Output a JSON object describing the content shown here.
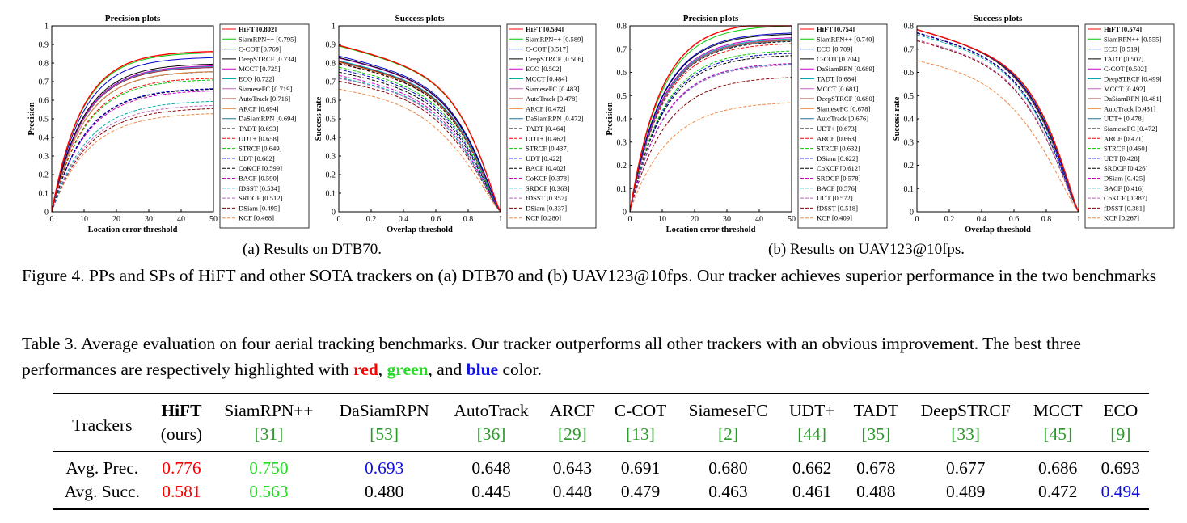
{
  "figure": {
    "caption": "Figure 4. PPs and SPs of HiFT and other SOTA trackers on (a) DTB70 and (b) UAV123@10fps. Our tracker achieves superior performance in the two benchmarks",
    "subcaption_a": "(a) Results on DTB70.",
    "subcaption_b": "(b) Results on UAV123@10fps."
  },
  "chart_data": [
    {
      "type": "line",
      "title": "Precision plots",
      "xlabel": "Location error threshold",
      "ylabel": "Precision",
      "xlim": [
        0,
        50
      ],
      "ylim": [
        0,
        1
      ],
      "xticks": [
        "0",
        "10",
        "20",
        "30",
        "40",
        "50"
      ],
      "yticks": [
        "0",
        "0.1",
        "0.2",
        "0.3",
        "0.4",
        "0.5",
        "0.6",
        "0.7",
        "0.8",
        "0.9",
        "1"
      ],
      "legend_position": "right",
      "series": [
        {
          "name": "HiFT [0.802]",
          "score": 0.802,
          "color": "#ff0000",
          "dash": false
        },
        {
          "name": "SiamRPN++ [0.795]",
          "score": 0.795,
          "color": "#00cc00",
          "dash": false
        },
        {
          "name": "C-COT [0.769]",
          "score": 0.769,
          "color": "#0000cc",
          "dash": false
        },
        {
          "name": "DeepSTRCF [0.734]",
          "score": 0.734,
          "color": "#000000",
          "dash": false
        },
        {
          "name": "MCCT [0.725]",
          "score": 0.725,
          "color": "#cc00cc",
          "dash": false
        },
        {
          "name": "ECO [0.722]",
          "score": 0.722,
          "color": "#00aaaa",
          "dash": false
        },
        {
          "name": "SiameseFC [0.719]",
          "score": 0.719,
          "color": "#bb66bb",
          "dash": false
        },
        {
          "name": "AutoTrack [0.716]",
          "score": 0.716,
          "color": "#880000",
          "dash": false
        },
        {
          "name": "ARCF [0.694]",
          "score": 0.694,
          "color": "#ee8844",
          "dash": false
        },
        {
          "name": "DaSiamRPN [0.694]",
          "score": 0.694,
          "color": "#227799",
          "dash": false
        },
        {
          "name": "TADT [0.693]",
          "score": 0.693,
          "color": "#000000",
          "dash": true
        },
        {
          "name": "UDT+ [0.658]",
          "score": 0.658,
          "color": "#ff0000",
          "dash": true
        },
        {
          "name": "STRCF [0.649]",
          "score": 0.649,
          "color": "#00cc00",
          "dash": true
        },
        {
          "name": "UDT [0.602]",
          "score": 0.602,
          "color": "#0000cc",
          "dash": true
        },
        {
          "name": "CoKCF [0.599]",
          "score": 0.599,
          "color": "#000000",
          "dash": true
        },
        {
          "name": "BACF [0.590]",
          "score": 0.59,
          "color": "#cc00cc",
          "dash": true
        },
        {
          "name": "fDSST [0.534]",
          "score": 0.534,
          "color": "#00aaaa",
          "dash": true
        },
        {
          "name": "SRDCF [0.512]",
          "score": 0.512,
          "color": "#bb66bb",
          "dash": true
        },
        {
          "name": "DSiam [0.495]",
          "score": 0.495,
          "color": "#880000",
          "dash": true
        },
        {
          "name": "KCF [0.468]",
          "score": 0.468,
          "color": "#ee8844",
          "dash": true
        }
      ]
    },
    {
      "type": "line",
      "title": "Success plots",
      "xlabel": "Overlap threshold",
      "ylabel": "Success rate",
      "xlim": [
        0,
        1
      ],
      "ylim": [
        0,
        1
      ],
      "xticks": [
        "0",
        "0.2",
        "0.4",
        "0.6",
        "0.8",
        "1"
      ],
      "yticks": [
        "0",
        "0.1",
        "0.2",
        "0.3",
        "0.4",
        "0.5",
        "0.6",
        "0.7",
        "0.8",
        "0.9",
        "1"
      ],
      "legend_position": "right",
      "series": [
        {
          "name": "HiFT [0.594]",
          "score": 0.594,
          "color": "#ff0000",
          "dash": false
        },
        {
          "name": "SiamRPN++ [0.589]",
          "score": 0.589,
          "color": "#00cc00",
          "dash": false
        },
        {
          "name": "C-COT [0.517]",
          "score": 0.517,
          "color": "#0000cc",
          "dash": false
        },
        {
          "name": "DeepSTRCF [0.506]",
          "score": 0.506,
          "color": "#000000",
          "dash": false
        },
        {
          "name": "ECO [0.502]",
          "score": 0.502,
          "color": "#cc00cc",
          "dash": false
        },
        {
          "name": "MCCT [0.484]",
          "score": 0.484,
          "color": "#00aaaa",
          "dash": false
        },
        {
          "name": "SiameseFC [0.483]",
          "score": 0.483,
          "color": "#bb66bb",
          "dash": false
        },
        {
          "name": "AutoTrack [0.478]",
          "score": 0.478,
          "color": "#880000",
          "dash": false
        },
        {
          "name": "ARCF [0.472]",
          "score": 0.472,
          "color": "#ee8844",
          "dash": false
        },
        {
          "name": "DaSiamRPN [0.472]",
          "score": 0.472,
          "color": "#227799",
          "dash": false
        },
        {
          "name": "TADT [0.464]",
          "score": 0.464,
          "color": "#000000",
          "dash": true
        },
        {
          "name": "UDT+ [0.462]",
          "score": 0.462,
          "color": "#ff0000",
          "dash": true
        },
        {
          "name": "STRCF [0.437]",
          "score": 0.437,
          "color": "#00cc00",
          "dash": true
        },
        {
          "name": "UDT [0.422]",
          "score": 0.422,
          "color": "#0000cc",
          "dash": true
        },
        {
          "name": "BACF [0.402]",
          "score": 0.402,
          "color": "#000000",
          "dash": true
        },
        {
          "name": "CoKCF [0.378]",
          "score": 0.378,
          "color": "#cc00cc",
          "dash": true
        },
        {
          "name": "SRDCF [0.363]",
          "score": 0.363,
          "color": "#00aaaa",
          "dash": true
        },
        {
          "name": "fDSST [0.357]",
          "score": 0.357,
          "color": "#bb66bb",
          "dash": true
        },
        {
          "name": "DSiam [0.337]",
          "score": 0.337,
          "color": "#880000",
          "dash": true
        },
        {
          "name": "KCF [0.280]",
          "score": 0.28,
          "color": "#ee8844",
          "dash": true
        }
      ]
    },
    {
      "type": "line",
      "title": "Precision plots",
      "xlabel": "Location error threshold",
      "ylabel": "Precision",
      "xlim": [
        0,
        50
      ],
      "ylim": [
        0,
        0.8
      ],
      "xticks": [
        "0",
        "10",
        "20",
        "30",
        "40",
        "50"
      ],
      "yticks": [
        "0",
        "0.1",
        "0.2",
        "0.3",
        "0.4",
        "0.5",
        "0.6",
        "0.7",
        "0.8"
      ],
      "legend_position": "right",
      "series": [
        {
          "name": "HiFT [0.754]",
          "score": 0.754,
          "color": "#ff0000",
          "dash": false
        },
        {
          "name": "SiamRPN++ [0.740]",
          "score": 0.74,
          "color": "#00cc00",
          "dash": false
        },
        {
          "name": "ECO [0.709]",
          "score": 0.709,
          "color": "#0000cc",
          "dash": false
        },
        {
          "name": "C-COT [0.704]",
          "score": 0.704,
          "color": "#000000",
          "dash": false
        },
        {
          "name": "DaSiamRPN [0.689]",
          "score": 0.689,
          "color": "#cc00cc",
          "dash": false
        },
        {
          "name": "TADT [0.684]",
          "score": 0.684,
          "color": "#00aaaa",
          "dash": false
        },
        {
          "name": "MCCT [0.681]",
          "score": 0.681,
          "color": "#bb66bb",
          "dash": false
        },
        {
          "name": "DeepSTRCF [0.680]",
          "score": 0.68,
          "color": "#880000",
          "dash": false
        },
        {
          "name": "SiameseFC [0.678]",
          "score": 0.678,
          "color": "#ee8844",
          "dash": false
        },
        {
          "name": "AutoTrack [0.676]",
          "score": 0.676,
          "color": "#227799",
          "dash": false
        },
        {
          "name": "UDT+ [0.673]",
          "score": 0.673,
          "color": "#000000",
          "dash": true
        },
        {
          "name": "ARCF [0.663]",
          "score": 0.663,
          "color": "#ff0000",
          "dash": true
        },
        {
          "name": "STRCF [0.632]",
          "score": 0.632,
          "color": "#00cc00",
          "dash": true
        },
        {
          "name": "DSiam [0.622]",
          "score": 0.622,
          "color": "#0000cc",
          "dash": true
        },
        {
          "name": "CoKCF [0.612]",
          "score": 0.612,
          "color": "#000000",
          "dash": true
        },
        {
          "name": "SRDCF [0.578]",
          "score": 0.578,
          "color": "#cc00cc",
          "dash": true
        },
        {
          "name": "BACF [0.576]",
          "score": 0.576,
          "color": "#00aaaa",
          "dash": true
        },
        {
          "name": "UDT [0.572]",
          "score": 0.572,
          "color": "#bb66bb",
          "dash": true
        },
        {
          "name": "fDSST [0.518]",
          "score": 0.518,
          "color": "#880000",
          "dash": true
        },
        {
          "name": "KCF [0.409]",
          "score": 0.409,
          "color": "#ee8844",
          "dash": true
        }
      ]
    },
    {
      "type": "line",
      "title": "Success plots",
      "xlabel": "Overlap threshold",
      "ylabel": "Success rate",
      "xlim": [
        0,
        1
      ],
      "ylim": [
        0,
        0.8
      ],
      "xticks": [
        "0",
        "0.2",
        "0.4",
        "0.6",
        "0.8",
        "1"
      ],
      "yticks": [
        "0",
        "0.1",
        "0.2",
        "0.3",
        "0.4",
        "0.5",
        "0.6",
        "0.7",
        "0.8"
      ],
      "legend_position": "right",
      "series": [
        {
          "name": "HiFT [0.574]",
          "score": 0.574,
          "color": "#ff0000",
          "dash": false
        },
        {
          "name": "SiamRPN++ [0.555]",
          "score": 0.555,
          "color": "#00cc00",
          "dash": false
        },
        {
          "name": "ECO [0.519]",
          "score": 0.519,
          "color": "#0000cc",
          "dash": false
        },
        {
          "name": "TADT [0.507]",
          "score": 0.507,
          "color": "#000000",
          "dash": false
        },
        {
          "name": "C-COT [0.502]",
          "score": 0.502,
          "color": "#cc00cc",
          "dash": false
        },
        {
          "name": "DeepSTRCF [0.499]",
          "score": 0.499,
          "color": "#00aaaa",
          "dash": false
        },
        {
          "name": "MCCT [0.492]",
          "score": 0.492,
          "color": "#bb66bb",
          "dash": false
        },
        {
          "name": "DaSiamRPN [0.481]",
          "score": 0.481,
          "color": "#880000",
          "dash": false
        },
        {
          "name": "AutoTrack [0.481]",
          "score": 0.481,
          "color": "#ee8844",
          "dash": false
        },
        {
          "name": "UDT+ [0.478]",
          "score": 0.478,
          "color": "#227799",
          "dash": false
        },
        {
          "name": "SiameseFC [0.472]",
          "score": 0.472,
          "color": "#000000",
          "dash": true
        },
        {
          "name": "ARCF [0.471]",
          "score": 0.471,
          "color": "#ff0000",
          "dash": true
        },
        {
          "name": "STRCF [0.460]",
          "score": 0.46,
          "color": "#00cc00",
          "dash": true
        },
        {
          "name": "UDT [0.428]",
          "score": 0.428,
          "color": "#0000cc",
          "dash": true
        },
        {
          "name": "SRDCF [0.426]",
          "score": 0.426,
          "color": "#000000",
          "dash": true
        },
        {
          "name": "DSiam [0.425]",
          "score": 0.425,
          "color": "#cc00cc",
          "dash": true
        },
        {
          "name": "BACF [0.416]",
          "score": 0.416,
          "color": "#00aaaa",
          "dash": true
        },
        {
          "name": "CoKCF [0.387]",
          "score": 0.387,
          "color": "#bb66bb",
          "dash": true
        },
        {
          "name": "fDSST [0.381]",
          "score": 0.381,
          "color": "#880000",
          "dash": true
        },
        {
          "name": "KCF [0.267]",
          "score": 0.267,
          "color": "#ee8844",
          "dash": true
        }
      ]
    }
  ],
  "table": {
    "caption_start": "Table 3. Average evaluation on four aerial tracking benchmarks. Our tracker outperforms all other trackers with an obvious improvement. The best three performances are respectively highlighted with",
    "word_red": "red",
    "sep1": ",",
    "word_green": "green",
    "sep2": ", and",
    "word_blue": "blue",
    "caption_end": "color.",
    "row_header": "Trackers",
    "columns": [
      {
        "name": "HiFT",
        "sub": "(ours)"
      },
      {
        "name": "SiamRPN++",
        "sub": "[31]"
      },
      {
        "name": "DaSiamRPN",
        "sub": "[53]"
      },
      {
        "name": "AutoTrack",
        "sub": "[36]"
      },
      {
        "name": "ARCF",
        "sub": "[29]"
      },
      {
        "name": "C-COT",
        "sub": "[13]"
      },
      {
        "name": "SiameseFC",
        "sub": "[2]"
      },
      {
        "name": "UDT+",
        "sub": "[44]"
      },
      {
        "name": "TADT",
        "sub": "[35]"
      },
      {
        "name": "DeepSTRCF",
        "sub": "[33]"
      },
      {
        "name": "MCCT",
        "sub": "[45]"
      },
      {
        "name": "ECO",
        "sub": "[9]"
      }
    ],
    "rows": [
      {
        "label": "Avg. Prec.",
        "values": [
          "0.776",
          "0.750",
          "0.693",
          "0.648",
          "0.643",
          "0.691",
          "0.680",
          "0.662",
          "0.678",
          "0.677",
          "0.686",
          "0.693"
        ],
        "rank": [
          1,
          2,
          3,
          0,
          0,
          0,
          0,
          0,
          0,
          0,
          0,
          0
        ]
      },
      {
        "label": "Avg. Succ.",
        "values": [
          "0.581",
          "0.563",
          "0.480",
          "0.445",
          "0.448",
          "0.479",
          "0.463",
          "0.461",
          "0.488",
          "0.489",
          "0.472",
          "0.494"
        ],
        "rank": [
          1,
          2,
          0,
          0,
          0,
          0,
          0,
          0,
          0,
          0,
          0,
          3
        ]
      }
    ]
  }
}
